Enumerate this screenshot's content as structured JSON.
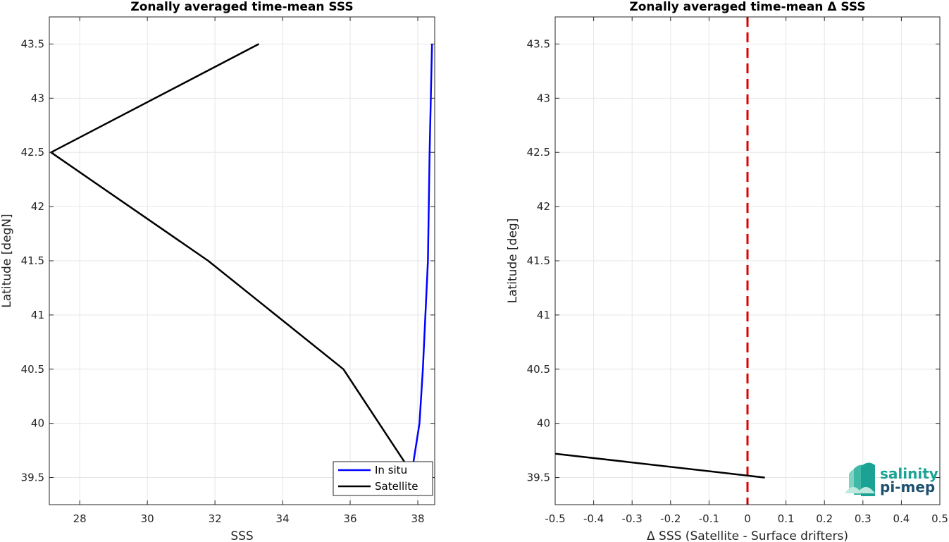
{
  "chart_data": [
    {
      "type": "line",
      "title": "Zonally averaged time-mean SSS",
      "xlabel": "SSS",
      "ylabel": "Latitude [degN]",
      "xlim": [
        27.1,
        38.5
      ],
      "ylim": [
        39.25,
        43.75
      ],
      "xticks": [
        28,
        30,
        32,
        34,
        36,
        38
      ],
      "xtick_labels": [
        "28",
        "30",
        "32",
        "34",
        "36",
        "38"
      ],
      "yticks": [
        39.5,
        40,
        40.5,
        41,
        41.5,
        42,
        42.5,
        43,
        43.5
      ],
      "ytick_labels": [
        "39.5",
        "40",
        "40.5",
        "41",
        "41.5",
        "42",
        "42.5",
        "43",
        "43.5"
      ],
      "grid": true,
      "legend_position": "bottom-right",
      "series": [
        {
          "name": "In situ",
          "color": "#0000ff",
          "x": [
            37.8,
            38.05,
            38.15,
            38.3,
            38.35,
            38.42
          ],
          "y": [
            39.5,
            40.0,
            40.5,
            41.5,
            42.5,
            43.5
          ]
        },
        {
          "name": "Satellite",
          "color": "#000000",
          "x": [
            37.7,
            35.8,
            31.8,
            27.15,
            33.3
          ],
          "y": [
            39.6,
            40.5,
            41.5,
            42.5,
            43.5
          ]
        }
      ]
    },
    {
      "type": "line",
      "title": "Zonally averaged time-mean Δ SSS",
      "xlabel": "Δ SSS (Satellite - Surface drifters)",
      "ylabel": "Latitude [deg]",
      "xlim": [
        -0.5,
        0.5
      ],
      "ylim": [
        39.25,
        43.75
      ],
      "xticks": [
        -0.5,
        -0.4,
        -0.3,
        -0.2,
        -0.1,
        0,
        0.1,
        0.2,
        0.3,
        0.4,
        0.5
      ],
      "xtick_labels": [
        "-0.5",
        "-0.4",
        "-0.3",
        "-0.2",
        "-0.1",
        "0",
        "0.1",
        "0.2",
        "0.3",
        "0.4",
        "0.5"
      ],
      "yticks": [
        39.5,
        40,
        40.5,
        41,
        41.5,
        42,
        42.5,
        43,
        43.5
      ],
      "ytick_labels": [
        "39.5",
        "40",
        "40.5",
        "41",
        "41.5",
        "42",
        "42.5",
        "43",
        "43.5"
      ],
      "grid": true,
      "reference_line": {
        "x": 0,
        "color": "#dd0000",
        "style": "dashed"
      },
      "series": [
        {
          "color": "#000000",
          "x": [
            -0.5,
            0.045
          ],
          "y": [
            39.72,
            39.5
          ]
        }
      ]
    }
  ],
  "logo": {
    "line1": "salinity",
    "line2": "pi-mep",
    "color": "#1aa394"
  }
}
